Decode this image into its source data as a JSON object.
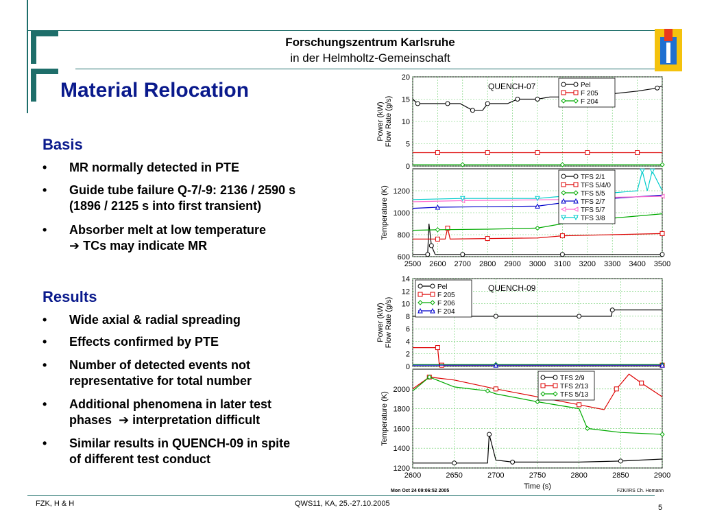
{
  "header": {
    "org": "Forschungszentrum Karlsruhe",
    "org_sub": "in der Helmholtz-Gemeinschaft",
    "brand_color": "#1e6e6a"
  },
  "title": "Material Relocation",
  "basis": {
    "heading": "Basis",
    "items": [
      {
        "line1": "MR normally detected in PTE",
        "line2": ""
      },
      {
        "line1": "Guide tube failure Q-7/-9: 2136 / 2590 s",
        "line2": "(1896 / 2125 s into first transient)"
      },
      {
        "line1": "Absorber melt at low temperature",
        "line2": "TCs may indicate MR",
        "arrow_icon": "arrow-right-icon"
      }
    ]
  },
  "results": {
    "heading": "Results",
    "items": [
      {
        "line1": "Wide axial & radial spreading",
        "line2": ""
      },
      {
        "line1": "Effects confirmed by PTE",
        "line2": ""
      },
      {
        "line1": "Number of detected events not",
        "line2": "representative for total number"
      },
      {
        "line1": "Additional phenomena in later test",
        "line2": "phases",
        "line2b": "interpretation difficult",
        "arrow_icon": "arrow-right-icon"
      },
      {
        "line1": "Similar results in QUENCH-09 in spite",
        "line2": "of different test conduct"
      }
    ]
  },
  "footer": {
    "left": "FZK, H & H",
    "center": "QWS11, KA, 25.-27.10.2005",
    "page": "5"
  },
  "chart_data": [
    {
      "type": "line",
      "annotation": "QUENCH-07",
      "ylabel_line1": "Power (kW)",
      "ylabel_line2": "Flow Rate (g/s)",
      "xlim": [
        2500,
        3500
      ],
      "ylim": [
        0,
        20
      ],
      "yticks": [
        0,
        5,
        10,
        15,
        20
      ],
      "grid": true,
      "legend_position": "top-right",
      "series": [
        {
          "name": "Pel",
          "color": "#000000",
          "marker": "circle",
          "x": [
            2500,
            2520,
            2580,
            2640,
            2690,
            2740,
            2780,
            2800,
            2880,
            2920,
            2960,
            3000,
            3050,
            3100,
            3200,
            3300,
            3400,
            3480,
            3500
          ],
          "y": [
            15,
            14,
            14,
            14,
            14,
            12.5,
            12.5,
            14,
            14,
            15,
            15,
            15,
            15.5,
            15.5,
            15.8,
            16.2,
            16.8,
            17.5,
            18
          ]
        },
        {
          "name": "F 205",
          "color": "#dd0000",
          "marker": "square",
          "x": [
            2500,
            2600,
            2700,
            2800,
            2900,
            3000,
            3100,
            3200,
            3300,
            3400,
            3500
          ],
          "y": [
            3,
            3,
            3,
            3,
            3,
            3,
            3,
            3,
            3,
            3,
            3
          ]
        },
        {
          "name": "F 204",
          "color": "#00aa00",
          "marker": "diamond",
          "x": [
            2500,
            2700,
            2900,
            3100,
            3300,
            3500
          ],
          "y": [
            0.3,
            0.3,
            0.3,
            0.3,
            0.3,
            0.3
          ]
        }
      ]
    },
    {
      "type": "line",
      "ylabel": "Temperature (K)",
      "xlim": [
        2500,
        3500
      ],
      "ylim": [
        600,
        1400
      ],
      "yticks": [
        600,
        800,
        1000,
        1200
      ],
      "xticks": [
        2500,
        2600,
        2700,
        2800,
        2900,
        3000,
        3100,
        3200,
        3300,
        3400,
        3500
      ],
      "grid": true,
      "legend_position": "top-right",
      "series": [
        {
          "name": "TFS 2/1",
          "color": "#000000",
          "marker": "circle",
          "x": [
            2500,
            2560,
            2565,
            2575,
            2590,
            2700,
            2900,
            3100,
            3300,
            3500
          ],
          "y": [
            620,
            620,
            900,
            700,
            620,
            620,
            620,
            620,
            620,
            620
          ]
        },
        {
          "name": "TFS 5/4/0",
          "color": "#dd0000",
          "marker": "square",
          "x": [
            2500,
            2600,
            2630,
            2640,
            2650,
            2800,
            3000,
            3100,
            3300,
            3500
          ],
          "y": [
            760,
            760,
            760,
            860,
            760,
            765,
            770,
            790,
            800,
            810
          ]
        },
        {
          "name": "TFS 5/5",
          "color": "#00aa00",
          "marker": "diamond",
          "x": [
            2500,
            2600,
            2800,
            3000,
            3100,
            3300,
            3500
          ],
          "y": [
            840,
            845,
            850,
            860,
            900,
            950,
            990
          ]
        },
        {
          "name": "TFS 2/7",
          "color": "#0000cc",
          "marker": "triangle",
          "x": [
            2500,
            2600,
            2800,
            3000,
            3100,
            3300,
            3500
          ],
          "y": [
            1040,
            1050,
            1055,
            1060,
            1090,
            1130,
            1160
          ]
        },
        {
          "name": "TFS 5/7",
          "color": "#ff66cc",
          "marker": "triangle-left",
          "x": [
            2500,
            2700,
            2900,
            3100,
            3300,
            3500
          ],
          "y": [
            1100,
            1110,
            1115,
            1120,
            1140,
            1150
          ]
        },
        {
          "name": "TFS 3/8",
          "color": "#00cccc",
          "marker": "triangle-down",
          "x": [
            2500,
            2700,
            2900,
            3000,
            3100,
            3300,
            3400,
            3420,
            3440,
            3460,
            3500
          ],
          "y": [
            1120,
            1130,
            1130,
            1130,
            1150,
            1180,
            1200,
            1380,
            1200,
            1380,
            1200
          ]
        }
      ]
    },
    {
      "type": "line",
      "annotation": "QUENCH-09",
      "ylabel_line1": "Power (kW)",
      "ylabel_line2": "Flow Rate (g/s)",
      "xlim": [
        2600,
        2900
      ],
      "ylim": [
        0,
        14
      ],
      "yticks": [
        0,
        2,
        4,
        6,
        8,
        10,
        12,
        14
      ],
      "grid": true,
      "legend_position": "top-left",
      "series": [
        {
          "name": "Pel",
          "color": "#000000",
          "marker": "circle",
          "x": [
            2600,
            2700,
            2740,
            2800,
            2839,
            2840,
            2900
          ],
          "y": [
            8,
            8,
            8,
            8,
            8,
            9,
            9
          ]
        },
        {
          "name": "F 205",
          "color": "#dd0000",
          "marker": "square",
          "x": [
            2600,
            2630,
            2632,
            2635,
            2700,
            2900
          ],
          "y": [
            3,
            3,
            0.2,
            0.2,
            0.2,
            0.2
          ]
        },
        {
          "name": "F 206",
          "color": "#00aa00",
          "marker": "diamond",
          "x": [
            2600,
            2700,
            2800,
            2900
          ],
          "y": [
            0.3,
            0.3,
            0.3,
            0.3
          ]
        },
        {
          "name": "F 204",
          "color": "#0000cc",
          "marker": "triangle",
          "x": [
            2600,
            2700,
            2800,
            2900
          ],
          "y": [
            0.2,
            0.2,
            0.2,
            0.2
          ]
        }
      ]
    },
    {
      "type": "line",
      "ylabel": "Temperature (K)",
      "xlabel": "Time (s)",
      "xlim": [
        2600,
        2900
      ],
      "ylim": [
        1200,
        2200
      ],
      "yticks": [
        1200,
        1400,
        1600,
        1800,
        2000
      ],
      "xticks": [
        2600,
        2650,
        2700,
        2750,
        2800,
        2850,
        2900
      ],
      "grid": true,
      "legend_position": "top-right",
      "series": [
        {
          "name": "TFS 2/9",
          "color": "#000000",
          "marker": "circle",
          "x": [
            2600,
            2650,
            2690,
            2692,
            2700,
            2720,
            2800,
            2850,
            2900
          ],
          "y": [
            1250,
            1250,
            1250,
            1540,
            1280,
            1260,
            1260,
            1270,
            1290
          ]
        },
        {
          "name": "TFS 2/13",
          "color": "#dd0000",
          "marker": "square",
          "x": [
            2600,
            2620,
            2650,
            2700,
            2750,
            2800,
            2830,
            2845,
            2860,
            2875,
            2900
          ],
          "y": [
            2000,
            2120,
            2090,
            2000,
            1920,
            1840,
            1790,
            2000,
            2150,
            2060,
            1920
          ]
        },
        {
          "name": "TFS 5/13",
          "color": "#00aa00",
          "marker": "diamond",
          "x": [
            2600,
            2620,
            2650,
            2690,
            2700,
            2750,
            2800,
            2810,
            2850,
            2900
          ],
          "y": [
            1980,
            2120,
            2020,
            1980,
            1950,
            1870,
            1800,
            1600,
            1560,
            1540
          ]
        }
      ]
    }
  ],
  "chart_footer": {
    "date": "Mon Oct 24 09:06:52 2005",
    "credit": "FZK/IRS Ch. Homann"
  }
}
